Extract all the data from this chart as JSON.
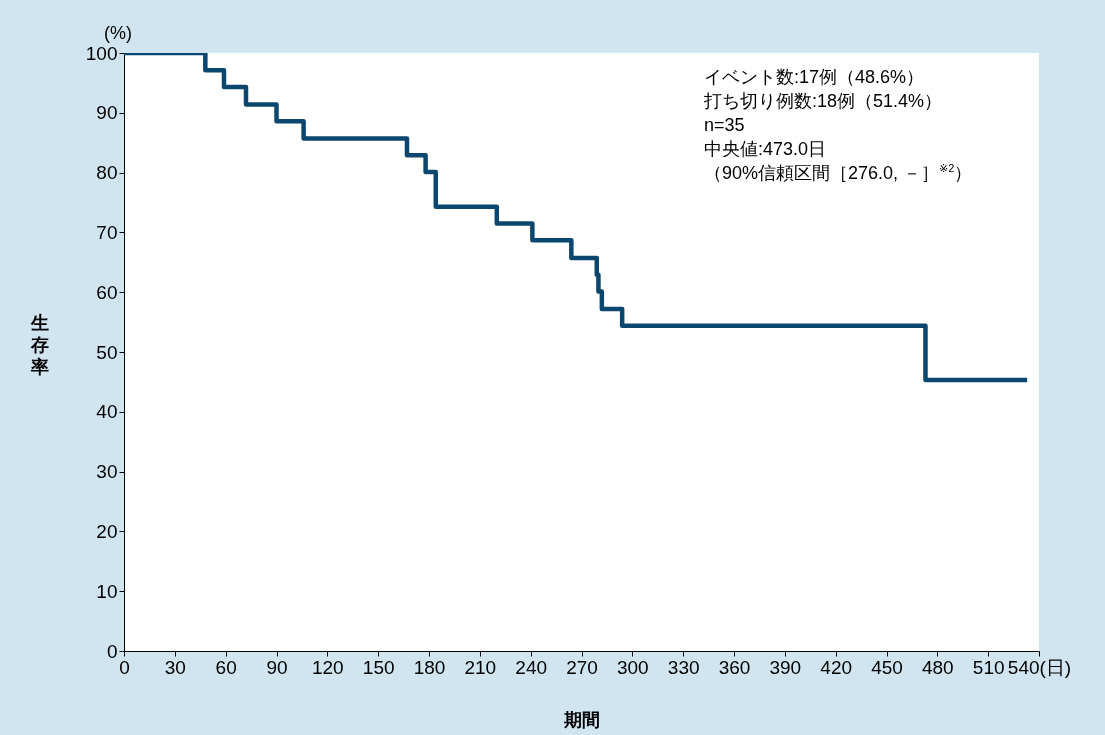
{
  "chart_data": {
    "type": "step",
    "xlabel": "期間",
    "ylabel": "生存率",
    "x": [
      0,
      48,
      59,
      72,
      90,
      106,
      167,
      178,
      184,
      220,
      241,
      264,
      279,
      280,
      282,
      294,
      473,
      533
    ],
    "series": [
      {
        "color": "#0b466e",
        "values": [
          100,
          97.1,
          94.3,
          91.4,
          88.6,
          85.7,
          82.9,
          80.1,
          74.3,
          71.5,
          68.7,
          65.7,
          62.9,
          60.1,
          57.2,
          54.4,
          45.3,
          45.3
        ]
      }
    ],
    "xlim": [
      0,
      540
    ],
    "xticks": [
      0,
      30,
      60,
      90,
      120,
      150,
      180,
      210,
      240,
      270,
      300,
      330,
      360,
      390,
      420,
      450,
      480,
      510,
      {
        "value": 540,
        "label": "540(日)"
      }
    ],
    "ylim": [
      0,
      100
    ],
    "yticks": [
      0,
      10,
      20,
      30,
      40,
      50,
      60,
      70,
      80,
      90,
      100
    ],
    "grid": false,
    "marker": "none",
    "line_style": "solid",
    "annotations": [
      "(%)",
      "イベント数:17例（48.6%）",
      "打ち切り例数:18例（51.4%）",
      "n=35",
      "中央値:473.0日",
      "（90%信頼区間［276.0, －］$^{※2}$）"
    ]
  }
}
